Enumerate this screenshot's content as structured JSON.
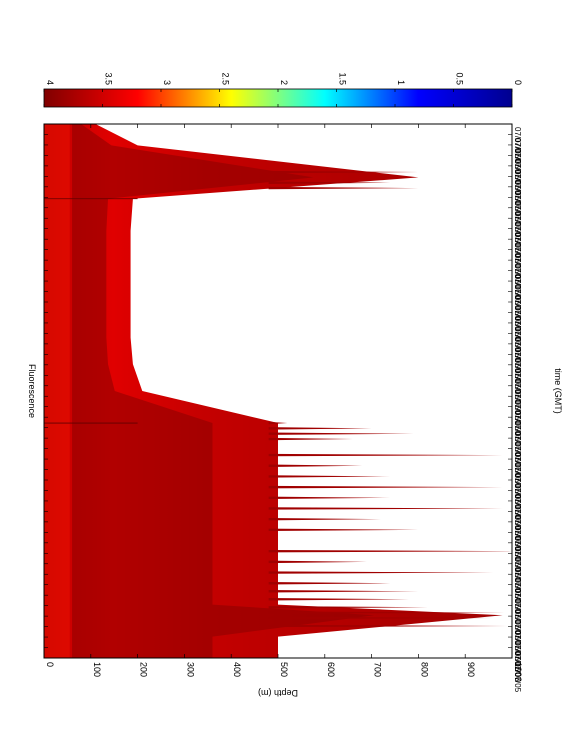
{
  "chart_data": {
    "type": "heatmap",
    "orientation": "rotated-90-clockwise",
    "title": "Fluorescence",
    "xlabel": "time (GMT)",
    "ylabel": "Depth (m)",
    "ylim": [
      0,
      1000
    ],
    "y_ticks": [
      0,
      100,
      200,
      300,
      400,
      500,
      600,
      700,
      800,
      900,
      1000
    ],
    "colorbar": {
      "range": [
        0,
        4
      ],
      "ticks": [
        "0",
        "0.5",
        "1",
        "1.5",
        "2",
        "2.5",
        "3",
        "3.5",
        "4"
      ],
      "colormap": "jet",
      "stops": [
        "#00008f",
        "#0000ff",
        "#00ffff",
        "#ffff00",
        "#ff0000",
        "#800000"
      ]
    },
    "time_tick_label": "07/07/05",
    "time_tick_count": 52,
    "profiles": {
      "segment_breaks": [
        0.44,
        0.86
      ],
      "max_depth": [
        {
          "t": 0.0,
          "depth": 500
        },
        {
          "t": 0.04,
          "depth": 500
        },
        {
          "t": 0.08,
          "depth": 980
        },
        {
          "t": 0.1,
          "depth": 500
        },
        {
          "t": 0.15,
          "depth": 500
        },
        {
          "t": 0.2,
          "depth": 500
        },
        {
          "t": 0.25,
          "depth": 500
        },
        {
          "t": 0.3,
          "depth": 500
        },
        {
          "t": 0.35,
          "depth": 500
        },
        {
          "t": 0.4,
          "depth": 500
        },
        {
          "t": 0.44,
          "depth": 500
        },
        {
          "t": 0.5,
          "depth": 210
        },
        {
          "t": 0.55,
          "depth": 190
        },
        {
          "t": 0.6,
          "depth": 185
        },
        {
          "t": 0.65,
          "depth": 185
        },
        {
          "t": 0.7,
          "depth": 185
        },
        {
          "t": 0.75,
          "depth": 185
        },
        {
          "t": 0.8,
          "depth": 185
        },
        {
          "t": 0.86,
          "depth": 190
        },
        {
          "t": 0.9,
          "depth": 800
        },
        {
          "t": 0.96,
          "depth": 200
        },
        {
          "t": 1.0,
          "depth": 110
        }
      ],
      "spikes": [
        {
          "t": 0.06,
          "depth": 990
        },
        {
          "t": 0.075,
          "depth": 960
        },
        {
          "t": 0.085,
          "depth": 985
        },
        {
          "t": 0.095,
          "depth": 820
        },
        {
          "t": 0.11,
          "depth": 780
        },
        {
          "t": 0.125,
          "depth": 800
        },
        {
          "t": 0.14,
          "depth": 740
        },
        {
          "t": 0.16,
          "depth": 960
        },
        {
          "t": 0.18,
          "depth": 690
        },
        {
          "t": 0.2,
          "depth": 1000
        },
        {
          "t": 0.24,
          "depth": 800
        },
        {
          "t": 0.26,
          "depth": 720
        },
        {
          "t": 0.28,
          "depth": 980
        },
        {
          "t": 0.3,
          "depth": 740
        },
        {
          "t": 0.32,
          "depth": 980
        },
        {
          "t": 0.34,
          "depth": 740
        },
        {
          "t": 0.36,
          "depth": 680
        },
        {
          "t": 0.38,
          "depth": 980
        },
        {
          "t": 0.41,
          "depth": 660
        },
        {
          "t": 0.42,
          "depth": 790
        },
        {
          "t": 0.43,
          "depth": 700
        },
        {
          "t": 0.44,
          "depth": 520
        },
        {
          "t": 0.88,
          "depth": 800
        },
        {
          "t": 0.89,
          "depth": 740
        },
        {
          "t": 0.91,
          "depth": 800
        }
      ]
    }
  }
}
